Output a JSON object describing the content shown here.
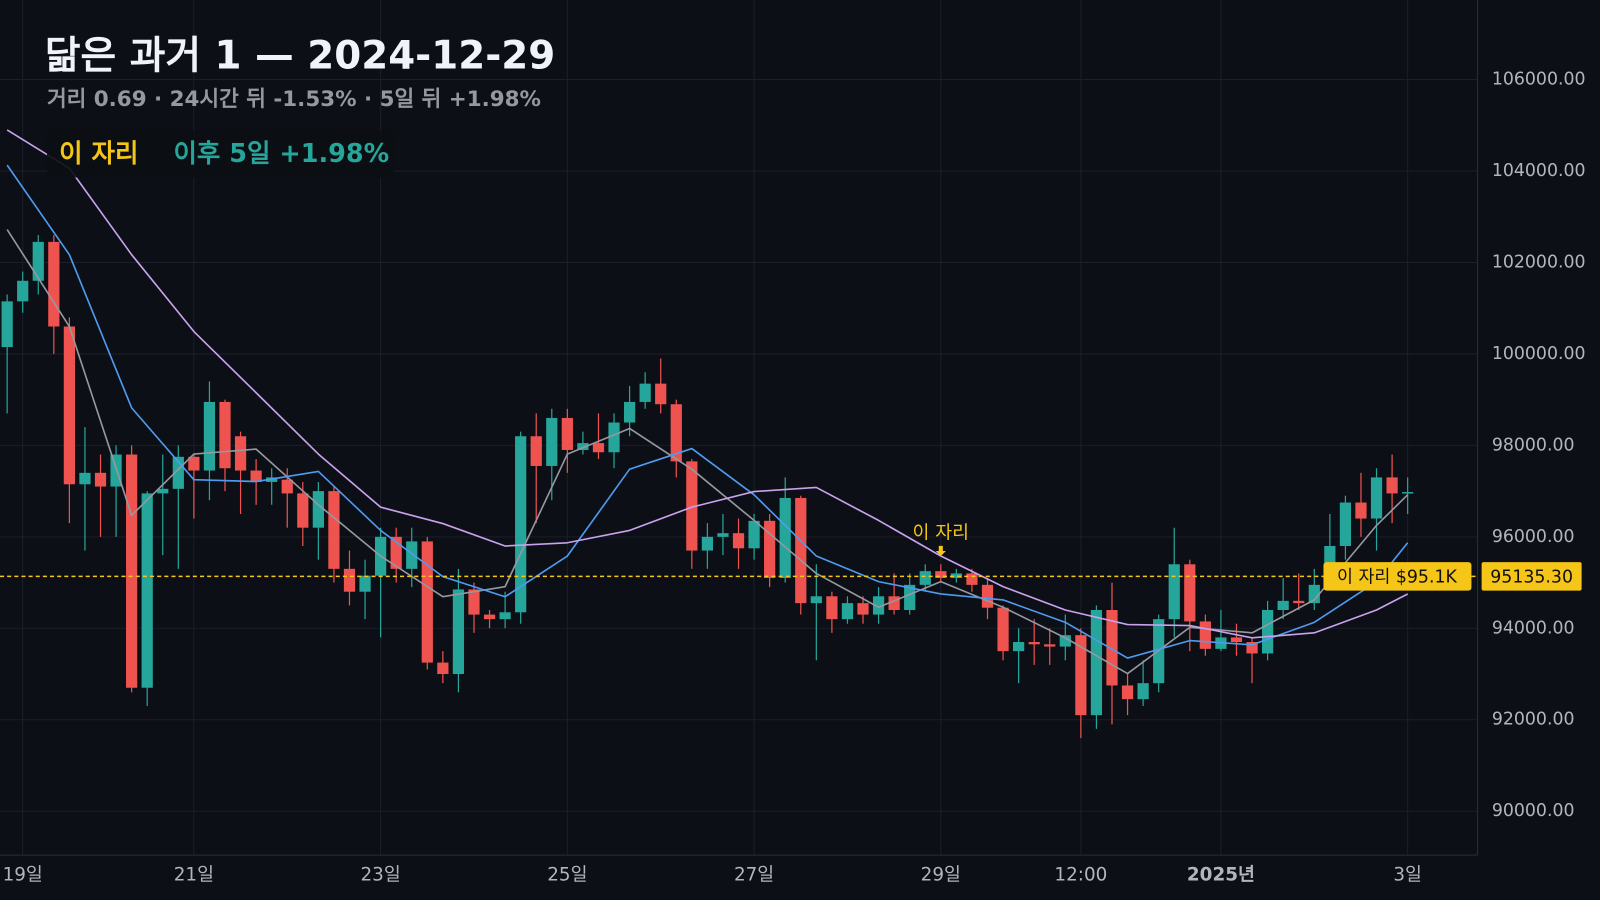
{
  "chart_data": {
    "type": "candlestick",
    "title": "닮은 과거 1 — 2024-12-29",
    "subtitle": "거리 0.69 · 24시간 뒤 -1.53% · 5일 뒤 +1.98%",
    "badge": {
      "label": "이 자리",
      "text": "이후 5일 +1.98%"
    },
    "categories": [
      null,
      "19일",
      null,
      null,
      null,
      null,
      null,
      null,
      null,
      null,
      null,
      null,
      "21일",
      null,
      null,
      null,
      null,
      null,
      null,
      null,
      null,
      null,
      null,
      null,
      "23일",
      null,
      null,
      null,
      null,
      null,
      null,
      null,
      null,
      null,
      null,
      null,
      "25일",
      null,
      null,
      null,
      null,
      null,
      null,
      null,
      null,
      null,
      null,
      null,
      "27일",
      null,
      null,
      null,
      null,
      null,
      null,
      null,
      null,
      null,
      null,
      null,
      "29일",
      null,
      null,
      null,
      null,
      null,
      null,
      null,
      null,
      "12:00",
      null,
      null,
      null,
      null,
      null,
      null,
      null,
      null,
      "2025년",
      null,
      null,
      null,
      null,
      null,
      null,
      null,
      null,
      null,
      null,
      null,
      "3일"
    ],
    "open": [
      100150,
      101150,
      101600,
      102450,
      100600,
      97150,
      97400,
      97100,
      97800,
      92700,
      96950,
      97050,
      97750,
      97450,
      98950,
      98200,
      97450,
      97200,
      97250,
      96950,
      96200,
      97000,
      95300,
      94800,
      95150,
      96000,
      95300,
      95900,
      93250,
      93000,
      94850,
      94300,
      94200,
      94350,
      98200,
      97550,
      98600,
      97900,
      98050,
      97850,
      98500,
      98950,
      99350,
      98900,
      97650,
      95700,
      96000,
      96080,
      95750,
      96350,
      95100,
      96850,
      94550,
      94700,
      94200,
      94550,
      94300,
      94700,
      94400,
      94950,
      95250,
      95100,
      95200,
      94950,
      94450,
      93500,
      93700,
      93650,
      93600,
      93850,
      92100,
      94400,
      92750,
      92450,
      92800,
      94200,
      95400,
      94150,
      93550,
      93800,
      93700,
      93450,
      94400,
      94600,
      94550,
      94950,
      95800,
      96750,
      96400,
      97300,
      96950
    ],
    "high": [
      101300,
      101800,
      102600,
      102600,
      100800,
      98400,
      97800,
      98000,
      98000,
      97000,
      97800,
      98000,
      97800,
      99400,
      99000,
      98300,
      97700,
      97500,
      97500,
      97200,
      97200,
      97100,
      95700,
      95500,
      96200,
      96200,
      96200,
      96000,
      93500,
      95300,
      95000,
      94400,
      94800,
      98300,
      98700,
      98800,
      98800,
      98300,
      98700,
      98700,
      99300,
      99600,
      99900,
      99000,
      97700,
      96300,
      96500,
      96400,
      96500,
      96500,
      97300,
      96900,
      95400,
      94800,
      94700,
      94700,
      94900,
      95200,
      95200,
      95400,
      95400,
      95300,
      95300,
      95100,
      94500,
      94000,
      94200,
      94000,
      94300,
      94000,
      94500,
      95000,
      93000,
      93300,
      94300,
      96200,
      95500,
      94300,
      94400,
      94100,
      93800,
      94600,
      95100,
      95200,
      95300,
      96500,
      96900,
      97400,
      97500,
      97800,
      97300
    ],
    "low": [
      98700,
      100900,
      101300,
      100000,
      96300,
      95700,
      96000,
      96000,
      92600,
      92300,
      95600,
      95300,
      96400,
      96800,
      97000,
      96500,
      96700,
      96700,
      96200,
      95800,
      95500,
      95000,
      94500,
      94200,
      93800,
      95000,
      94900,
      93100,
      92800,
      92600,
      93900,
      94000,
      94000,
      94100,
      96300,
      96800,
      97400,
      97800,
      97700,
      97500,
      98200,
      98800,
      98700,
      97300,
      95300,
      95300,
      95600,
      95300,
      95500,
      94900,
      95000,
      94300,
      93300,
      93900,
      94100,
      94100,
      94100,
      94300,
      94300,
      94800,
      95000,
      95000,
      94800,
      94200,
      93300,
      92800,
      93200,
      93200,
      93300,
      91600,
      91800,
      91900,
      92100,
      92300,
      92600,
      93800,
      93500,
      93400,
      93500,
      93400,
      92800,
      93300,
      94200,
      94400,
      94400,
      94900,
      95500,
      96000,
      95700,
      96300,
      96500
    ],
    "close": [
      101150,
      101600,
      102450,
      100600,
      97150,
      97400,
      97100,
      97800,
      92700,
      96950,
      97050,
      97750,
      97450,
      98950,
      97500,
      97450,
      97200,
      97300,
      96950,
      96200,
      97000,
      95300,
      94800,
      95150,
      96000,
      95300,
      95900,
      93250,
      93000,
      94850,
      94300,
      94200,
      94350,
      98200,
      97550,
      98600,
      97900,
      98050,
      97850,
      98500,
      98950,
      99350,
      98900,
      97650,
      95700,
      96000,
      96080,
      95750,
      96350,
      95100,
      96850,
      94550,
      94700,
      94200,
      94550,
      94300,
      94700,
      94400,
      94950,
      95250,
      95100,
      95200,
      94950,
      94450,
      93500,
      93700,
      93650,
      93600,
      93850,
      92100,
      94400,
      92750,
      92450,
      92800,
      94200,
      95400,
      94150,
      93550,
      93800,
      93700,
      93450,
      94400,
      94600,
      94550,
      94950,
      95800,
      96750,
      96400,
      97300,
      96950,
      96980
    ],
    "up_color": "#26a69a",
    "down_color": "#ef5350",
    "series": [
      {
        "color": "#9598a1",
        "x": [
          0,
          4,
          8,
          12,
          16,
          20,
          24,
          28,
          32,
          36,
          40,
          44,
          48,
          52,
          56,
          60,
          64,
          68,
          72,
          76,
          80,
          84,
          88,
          90
        ],
        "values": [
          102720,
          100600,
          96470,
          97810,
          97920,
          96700,
          95580,
          94690,
          94910,
          97810,
          98370,
          97480,
          96360,
          95200,
          94460,
          95020,
          94460,
          93790,
          93010,
          94020,
          93900,
          94620,
          96250,
          96920
        ]
      },
      {
        "color": "#4e9bf0",
        "x": [
          0,
          4,
          8,
          12,
          16,
          20,
          24,
          28,
          32,
          36,
          40,
          44,
          48,
          52,
          56,
          60,
          64,
          68,
          72,
          76,
          80,
          84,
          88,
          90
        ],
        "values": [
          104130,
          102170,
          98820,
          97250,
          97210,
          97430,
          96140,
          95130,
          94690,
          95580,
          97480,
          97930,
          96920,
          95580,
          95020,
          94750,
          94620,
          94130,
          93350,
          93730,
          93640,
          94130,
          95020,
          95870
        ]
      },
      {
        "color": "#c9a2ee",
        "x": [
          0,
          4,
          8,
          12,
          16,
          20,
          24,
          28,
          32,
          36,
          40,
          44,
          48,
          52,
          56,
          60,
          64,
          68,
          72,
          76,
          80,
          84,
          88,
          90
        ],
        "values": [
          104900,
          104060,
          102170,
          100490,
          99150,
          97810,
          96650,
          96290,
          95800,
          95870,
          96140,
          96650,
          96990,
          97080,
          96360,
          95580,
          94910,
          94400,
          94080,
          94060,
          93790,
          93900,
          94400,
          94750
        ]
      }
    ],
    "ylim": [
      89040,
      107740
    ],
    "yticks": [
      {
        "value": 90000,
        "label": "90000.00"
      },
      {
        "value": 92000,
        "label": "92000.00"
      },
      {
        "value": 94000,
        "label": "94000.00"
      },
      {
        "value": 96000,
        "label": "96000.00"
      },
      {
        "value": 98000,
        "label": "98000.00"
      },
      {
        "value": 100000,
        "label": "100000.00"
      },
      {
        "value": 102000,
        "label": "102000.00"
      },
      {
        "value": 104000,
        "label": "104000.00"
      },
      {
        "value": 106000,
        "label": "106000.00"
      }
    ],
    "grid": true,
    "reference_line": {
      "value": 95135.3,
      "label": "95135.30",
      "tag": "이 자리 $95.1K",
      "color": "#f5c518"
    },
    "annotation": {
      "text": "이 자리",
      "category_index": 60,
      "color": "#f5c518"
    }
  }
}
